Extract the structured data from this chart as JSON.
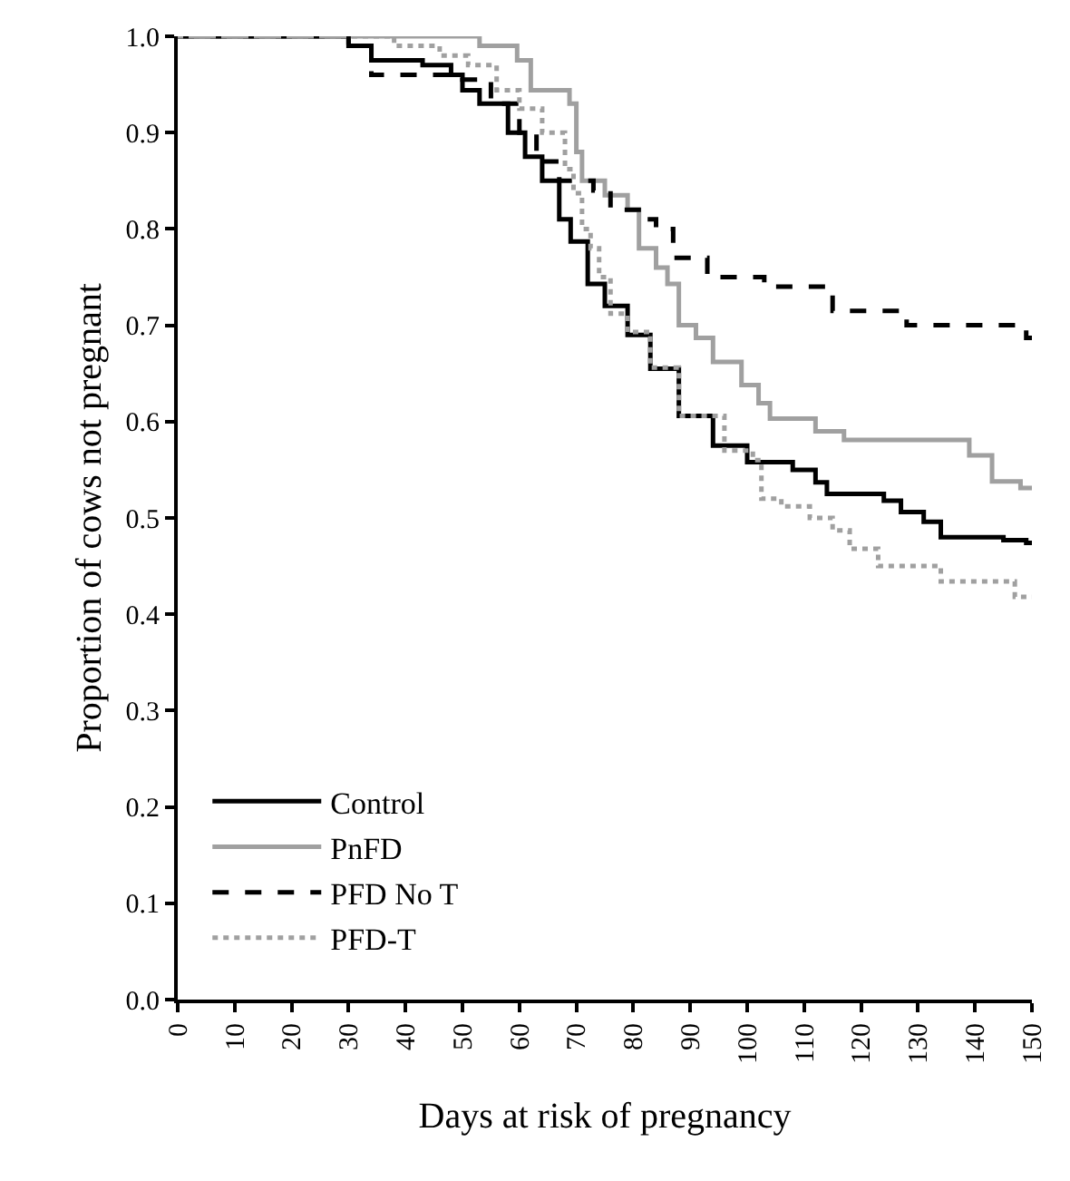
{
  "chart_data": {
    "type": "step",
    "xlabel": "Days at risk of pregnancy",
    "ylabel": "Proportion of cows not pregnant",
    "xlim": [
      0,
      150
    ],
    "xticks": [
      0,
      10,
      20,
      30,
      40,
      50,
      60,
      70,
      80,
      90,
      100,
      110,
      120,
      130,
      140,
      150
    ],
    "ylim": [
      0,
      1
    ],
    "yticks": [
      {
        "value": 0,
        "label": "0.0"
      },
      0.1,
      0.2,
      0.3,
      0.4,
      0.5,
      0.6,
      0.7,
      0.8,
      0.9,
      {
        "value": 1,
        "label": "1.0"
      }
    ],
    "legend": "bottom left",
    "series": [
      {
        "name": "Control",
        "color": "#000000",
        "line_style": "solid",
        "x": [
          0,
          30,
          34,
          43,
          48,
          50,
          53,
          58,
          61,
          64,
          67,
          69,
          72,
          75,
          79,
          83,
          88,
          94,
          100,
          108,
          112,
          114,
          124,
          127,
          131,
          134,
          145,
          149,
          150
        ],
        "values": [
          1.0,
          0.99,
          0.975,
          0.97,
          0.96,
          0.944,
          0.93,
          0.9,
          0.875,
          0.85,
          0.81,
          0.787,
          0.743,
          0.72,
          0.69,
          0.655,
          0.606,
          0.575,
          0.558,
          0.55,
          0.537,
          0.525,
          0.518,
          0.506,
          0.496,
          0.48,
          0.477,
          0.474,
          0.474
        ]
      },
      {
        "name": "PnFD",
        "color": "#a0a0a0",
        "line_style": "solid",
        "x": [
          0,
          53,
          59.6,
          62,
          68.8,
          70,
          71,
          75,
          79,
          81,
          84,
          86,
          88,
          91,
          94,
          99,
          102,
          104,
          112,
          117,
          139,
          143,
          148,
          150
        ],
        "values": [
          1.0,
          0.99,
          0.975,
          0.944,
          0.93,
          0.88,
          0.85,
          0.835,
          0.82,
          0.78,
          0.76,
          0.743,
          0.7,
          0.687,
          0.662,
          0.638,
          0.619,
          0.603,
          0.59,
          0.581,
          0.565,
          0.538,
          0.531,
          0.531
        ]
      },
      {
        "name": "PFD No T",
        "color": "#000000",
        "line_style": "dashed",
        "x": [
          0,
          30,
          34,
          50,
          55,
          60,
          63,
          67,
          73,
          76,
          82,
          84,
          87,
          93,
          103,
          115,
          128,
          149,
          150
        ],
        "values": [
          1.0,
          0.99,
          0.96,
          0.955,
          0.93,
          0.9,
          0.87,
          0.85,
          0.84,
          0.82,
          0.81,
          0.8,
          0.77,
          0.75,
          0.74,
          0.715,
          0.7,
          0.687,
          0.687
        ]
      },
      {
        "name": "PFD-T",
        "color": "#a0a0a0",
        "line_style": "dotted",
        "x": [
          0,
          38,
          46,
          51,
          56,
          60,
          64,
          68,
          69.5,
          71,
          72.5,
          74,
          76,
          79,
          83,
          88,
          96,
          101,
          102.5,
          106,
          111,
          115,
          118,
          123,
          134,
          147,
          150
        ],
        "values": [
          1.0,
          0.99,
          0.98,
          0.97,
          0.944,
          0.925,
          0.9,
          0.862,
          0.837,
          0.8,
          0.78,
          0.75,
          0.712,
          0.693,
          0.656,
          0.606,
          0.57,
          0.56,
          0.52,
          0.512,
          0.5,
          0.487,
          0.468,
          0.45,
          0.434,
          0.418,
          0.418
        ]
      }
    ]
  }
}
